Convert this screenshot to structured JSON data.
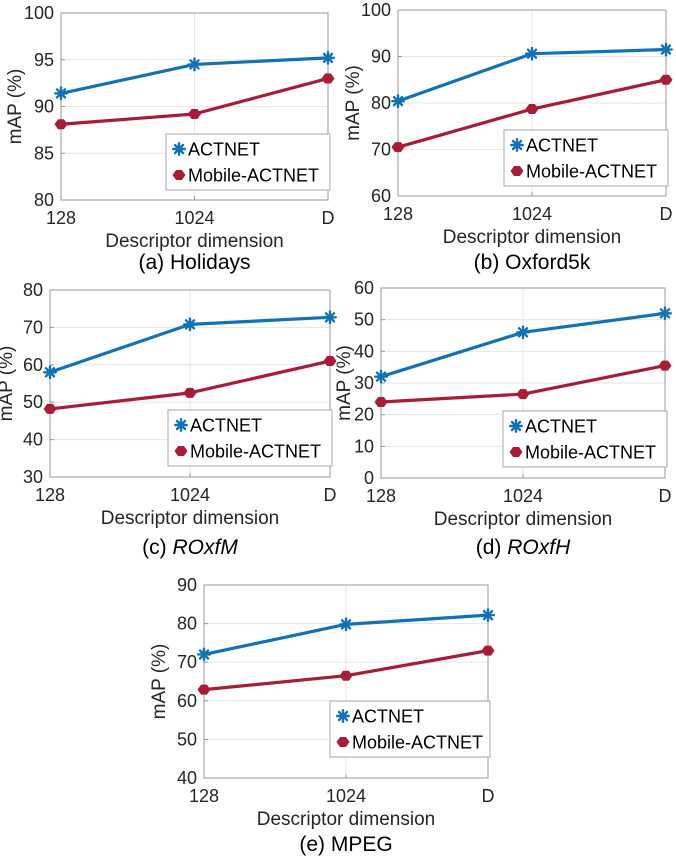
{
  "figure": {
    "xlabel": "Descriptor dimension",
    "ylabel": "mAP (%)",
    "categories": [
      "128",
      "1024",
      "D"
    ],
    "legend": {
      "position": "lower-right",
      "items": [
        "ACTNET",
        "Mobile-ACTNET"
      ]
    },
    "colors": {
      "actnet": "#1172b4",
      "mobile_actnet": "#a81d35",
      "axis": "#999999",
      "grid": "#e6e6e6",
      "tick_text": "#262626",
      "caption_text": "#000000",
      "legend_border": "#aaaaaa",
      "legend_bg": "#ffffff"
    }
  },
  "chart_data": [
    {
      "id": "holidays",
      "type": "line",
      "caption_parts": [
        {
          "text": "(a) Holidays",
          "italic": false
        }
      ],
      "xlabel": "Descriptor dimension",
      "ylabel": "mAP (%)",
      "categories": [
        "128",
        "1024",
        "D"
      ],
      "ylim": [
        80,
        100
      ],
      "ytick_step": 5,
      "grid": true,
      "legend_position": "lower-right",
      "series": [
        {
          "name": "ACTNET",
          "color": "#1172b4",
          "marker": "asterisk",
          "values": [
            91.4,
            94.5,
            95.2
          ]
        },
        {
          "name": "Mobile-ACTNET",
          "color": "#a81d35",
          "marker": "hexagon",
          "values": [
            88.1,
            89.2,
            93.0
          ]
        }
      ]
    },
    {
      "id": "oxford5k",
      "type": "line",
      "caption_parts": [
        {
          "text": "(b) Oxford5k",
          "italic": false
        }
      ],
      "xlabel": "Descriptor dimension",
      "ylabel": "mAP (%)",
      "categories": [
        "128",
        "1024",
        "D"
      ],
      "ylim": [
        60,
        100
      ],
      "ytick_step": 10,
      "grid": true,
      "legend_position": "lower-right",
      "series": [
        {
          "name": "ACTNET",
          "color": "#1172b4",
          "marker": "asterisk",
          "values": [
            80.4,
            90.6,
            91.5
          ]
        },
        {
          "name": "Mobile-ACTNET",
          "color": "#a81d35",
          "marker": "hexagon",
          "values": [
            70.5,
            78.7,
            85.0
          ]
        }
      ]
    },
    {
      "id": "roxf-m",
      "type": "line",
      "caption_parts": [
        {
          "text": "(c) ",
          "italic": false
        },
        {
          "text": "ROxfM",
          "italic": true
        }
      ],
      "xlabel": "Descriptor dimension",
      "ylabel": "mAP (%)",
      "categories": [
        "128",
        "1024",
        "D"
      ],
      "ylim": [
        30,
        80
      ],
      "ytick_step": 10,
      "grid": true,
      "legend_position": "lower-right",
      "series": [
        {
          "name": "ACTNET",
          "color": "#1172b4",
          "marker": "asterisk",
          "values": [
            58.0,
            70.8,
            72.7
          ]
        },
        {
          "name": "Mobile-ACTNET",
          "color": "#a81d35",
          "marker": "hexagon",
          "values": [
            48.2,
            52.5,
            61.0
          ]
        }
      ]
    },
    {
      "id": "roxf-h",
      "type": "line",
      "caption_parts": [
        {
          "text": "(d) ",
          "italic": false
        },
        {
          "text": "ROxfH",
          "italic": true
        }
      ],
      "xlabel": "Descriptor dimension",
      "ylabel": "mAP (%)",
      "categories": [
        "128",
        "1024",
        "D"
      ],
      "ylim": [
        0,
        60
      ],
      "ytick_step": 10,
      "grid": true,
      "legend_position": "lower-right",
      "series": [
        {
          "name": "ACTNET",
          "color": "#1172b4",
          "marker": "asterisk",
          "values": [
            32.0,
            46.0,
            52.0
          ]
        },
        {
          "name": "Mobile-ACTNET",
          "color": "#a81d35",
          "marker": "hexagon",
          "values": [
            24.0,
            26.5,
            35.5
          ]
        }
      ]
    },
    {
      "id": "mpeg",
      "type": "line",
      "caption_parts": [
        {
          "text": "(e) MPEG",
          "italic": false
        }
      ],
      "xlabel": "Descriptor dimension",
      "ylabel": "mAP (%)",
      "categories": [
        "128",
        "1024",
        "D"
      ],
      "ylim": [
        40,
        90
      ],
      "ytick_step": 10,
      "grid": true,
      "legend_position": "lower-right",
      "series": [
        {
          "name": "ACTNET",
          "color": "#1172b4",
          "marker": "asterisk",
          "values": [
            72.0,
            79.8,
            82.2
          ]
        },
        {
          "name": "Mobile-ACTNET",
          "color": "#a81d35",
          "marker": "hexagon",
          "values": [
            62.9,
            66.5,
            73.0
          ]
        }
      ]
    }
  ]
}
